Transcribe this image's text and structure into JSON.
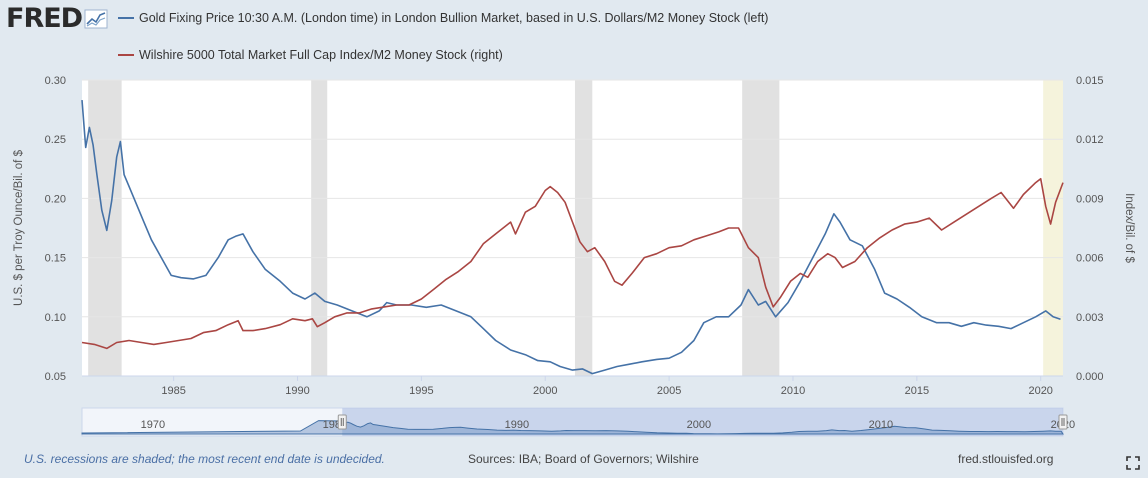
{
  "header": {
    "logo_text": "FRED",
    "series_1_legend": "Gold Fixing Price 10:30 A.M. (London time) in London Bullion Market, based in U.S. Dollars/M2 Money Stock (left)",
    "series_2_legend": "Wilshire 5000 Total Market Full Cap Index/M2 Money Stock (right)"
  },
  "colors": {
    "gold_series": "#4572a7",
    "wilshire_series": "#aa4643",
    "recession_shade": "#e1e1e1",
    "undecided_shade": "#f5f3dc",
    "navigator_fill": "#b8c8e6",
    "plot_background": "#ffffff"
  },
  "footer": {
    "note": "U.S. recessions are shaded; the most recent end date is undecided.",
    "sources": "Sources: IBA; Board of Governors; Wilshire",
    "url": "fred.stlouisfed.org"
  },
  "chart_data": {
    "type": "line",
    "x_range": [
      1981.3,
      2020.9
    ],
    "left_axis": {
      "title": "U.S. $ per Troy Ounce/Bil. of $",
      "range": [
        0.05,
        0.3
      ],
      "ticks": [
        "0.05",
        "0.10",
        "0.15",
        "0.20",
        "0.25",
        "0.30"
      ]
    },
    "right_axis": {
      "title": "Index/Bil. of $",
      "range": [
        0.0,
        0.015
      ],
      "ticks": [
        "0.000",
        "0.003",
        "0.006",
        "0.009",
        "0.012",
        "0.015"
      ]
    },
    "x_ticks": [
      "1985",
      "1990",
      "1995",
      "2000",
      "2005",
      "2010",
      "2015",
      "2020"
    ],
    "recessions": [
      [
        1981.55,
        1982.9
      ],
      [
        1990.55,
        1991.2
      ],
      [
        2001.2,
        2001.9
      ],
      [
        2007.95,
        2009.45
      ]
    ],
    "undecided_recession": [
      2020.1,
      2020.9
    ],
    "series": [
      {
        "name": "Gold Fixing Price 10:30 A.M. (London time) in London Bullion Market, based in U.S. Dollars/M2 Money Stock",
        "axis": "left",
        "x": [
          1981.3,
          1981.45,
          1981.6,
          1981.75,
          1981.9,
          1982.1,
          1982.3,
          1982.5,
          1982.7,
          1982.85,
          1983.0,
          1983.2,
          1983.5,
          1983.8,
          1984.1,
          1984.5,
          1984.9,
          1985.3,
          1985.8,
          1986.3,
          1986.8,
          1987.2,
          1987.5,
          1987.8,
          1988.2,
          1988.7,
          1989.3,
          1989.8,
          1990.3,
          1990.7,
          1991.1,
          1991.6,
          1992.2,
          1992.8,
          1993.3,
          1993.6,
          1994.0,
          1994.6,
          1995.2,
          1995.8,
          1996.4,
          1997.0,
          1997.5,
          1998.0,
          1998.6,
          1999.2,
          1999.7,
          2000.2,
          2000.6,
          2001.1,
          2001.5,
          2001.9,
          2002.4,
          2002.9,
          2003.4,
          2003.9,
          2004.5,
          2005.0,
          2005.5,
          2006.0,
          2006.4,
          2006.9,
          2007.4,
          2007.9,
          2008.2,
          2008.6,
          2008.9,
          2009.3,
          2009.8,
          2010.3,
          2010.8,
          2011.3,
          2011.65,
          2011.9,
          2012.3,
          2012.8,
          2013.3,
          2013.7,
          2014.2,
          2014.7,
          2015.2,
          2015.8,
          2016.3,
          2016.8,
          2017.3,
          2017.8,
          2018.3,
          2018.8,
          2019.3,
          2019.8,
          2020.2,
          2020.5,
          2020.8
        ],
        "values": [
          0.283,
          0.243,
          0.26,
          0.245,
          0.22,
          0.19,
          0.173,
          0.198,
          0.235,
          0.248,
          0.22,
          0.21,
          0.195,
          0.18,
          0.165,
          0.15,
          0.135,
          0.133,
          0.132,
          0.135,
          0.15,
          0.165,
          0.168,
          0.17,
          0.155,
          0.14,
          0.13,
          0.12,
          0.115,
          0.12,
          0.113,
          0.11,
          0.105,
          0.1,
          0.105,
          0.112,
          0.11,
          0.11,
          0.108,
          0.11,
          0.105,
          0.1,
          0.09,
          0.08,
          0.072,
          0.068,
          0.063,
          0.062,
          0.058,
          0.055,
          0.056,
          0.052,
          0.055,
          0.058,
          0.06,
          0.062,
          0.064,
          0.065,
          0.07,
          0.08,
          0.095,
          0.1,
          0.1,
          0.11,
          0.123,
          0.11,
          0.113,
          0.1,
          0.112,
          0.13,
          0.15,
          0.17,
          0.187,
          0.18,
          0.165,
          0.16,
          0.14,
          0.12,
          0.115,
          0.108,
          0.1,
          0.095,
          0.095,
          0.092,
          0.095,
          0.093,
          0.092,
          0.09,
          0.095,
          0.1,
          0.105,
          0.1,
          0.098
        ]
      },
      {
        "name": "Wilshire 5000 Total Market Full Cap Index/M2 Money Stock",
        "axis": "right",
        "x": [
          1981.3,
          1981.8,
          1982.3,
          1982.7,
          1983.2,
          1983.7,
          1984.2,
          1984.7,
          1985.2,
          1985.7,
          1986.2,
          1986.7,
          1987.2,
          1987.6,
          1987.8,
          1988.2,
          1988.7,
          1989.3,
          1989.8,
          1990.3,
          1990.6,
          1990.8,
          1991.1,
          1991.5,
          1992.0,
          1992.5,
          1993.0,
          1993.5,
          1994.0,
          1994.5,
          1995.0,
          1995.5,
          1996.0,
          1996.5,
          1997.0,
          1997.5,
          1998.0,
          1998.6,
          1998.8,
          1999.2,
          1999.6,
          2000.0,
          2000.2,
          2000.5,
          2000.8,
          2001.1,
          2001.4,
          2001.7,
          2002.0,
          2002.4,
          2002.8,
          2003.1,
          2003.5,
          2004.0,
          2004.5,
          2005.0,
          2005.5,
          2006.0,
          2006.5,
          2007.0,
          2007.4,
          2007.8,
          2008.2,
          2008.6,
          2008.9,
          2009.2,
          2009.5,
          2009.9,
          2010.3,
          2010.6,
          2011.0,
          2011.4,
          2011.7,
          2012.0,
          2012.5,
          2013.0,
          2013.5,
          2014.0,
          2014.5,
          2015.0,
          2015.5,
          2016.0,
          2016.5,
          2017.0,
          2017.5,
          2018.0,
          2018.4,
          2018.9,
          2019.3,
          2019.8,
          2020.0,
          2020.2,
          2020.4,
          2020.6,
          2020.9
        ],
        "values": [
          0.0017,
          0.0016,
          0.0014,
          0.0017,
          0.0018,
          0.0017,
          0.0016,
          0.0017,
          0.0018,
          0.0019,
          0.0022,
          0.0023,
          0.0026,
          0.0028,
          0.0023,
          0.0023,
          0.0024,
          0.0026,
          0.0029,
          0.0028,
          0.0029,
          0.0025,
          0.0027,
          0.003,
          0.0032,
          0.0032,
          0.0034,
          0.0035,
          0.0036,
          0.0036,
          0.0039,
          0.0044,
          0.0049,
          0.0053,
          0.0058,
          0.0067,
          0.0072,
          0.0078,
          0.0072,
          0.0083,
          0.0086,
          0.0094,
          0.0096,
          0.0093,
          0.0088,
          0.0078,
          0.0068,
          0.0063,
          0.0065,
          0.0058,
          0.0048,
          0.0046,
          0.0052,
          0.006,
          0.0062,
          0.0065,
          0.0066,
          0.0069,
          0.0071,
          0.0073,
          0.0075,
          0.0075,
          0.0065,
          0.006,
          0.0045,
          0.0035,
          0.004,
          0.0048,
          0.0052,
          0.005,
          0.0058,
          0.0062,
          0.006,
          0.0055,
          0.0058,
          0.0065,
          0.007,
          0.0074,
          0.0077,
          0.0078,
          0.008,
          0.0074,
          0.0078,
          0.0082,
          0.0086,
          0.009,
          0.0093,
          0.0085,
          0.0092,
          0.0098,
          0.01,
          0.0086,
          0.0077,
          0.0088,
          0.0098
        ]
      }
    ],
    "navigator": {
      "x_range": [
        1967.0,
        2020.9
      ],
      "selected_range": [
        1981.3,
        2020.9
      ],
      "x_ticks": [
        "1970",
        "1980",
        "1990",
        "2000",
        "2010",
        "2020"
      ]
    }
  }
}
